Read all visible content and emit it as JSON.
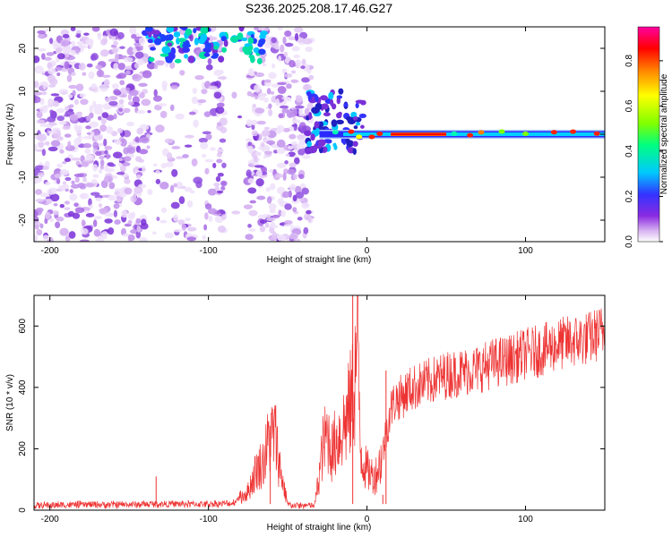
{
  "title": "S236.2025.208.17.46.G27",
  "chart_data": [
    {
      "type": "heatmap",
      "title": "S236.2025.208.17.46.G27",
      "xlabel": "Height of straight line (km)",
      "ylabel": "Frequency (Hz)",
      "xlim": [
        -210,
        150
      ],
      "ylim": [
        -25,
        25
      ],
      "x_ticks": [
        -200,
        -100,
        0,
        100
      ],
      "y_ticks": [
        20,
        10,
        0,
        -10,
        -20
      ],
      "colorbar": {
        "label": "Normalized spectral amplitude",
        "range": [
          0.0,
          0.95
        ],
        "ticks": [
          "0.0",
          "0.2",
          "0.4",
          "0.6",
          "0.8"
        ],
        "colormap": [
          "#ffffff",
          "#d8b4f0",
          "#8a2be2",
          "#3333ff",
          "#00c8ff",
          "#00ff80",
          "#80ff00",
          "#ffff00",
          "#ff8000",
          "#ff0000",
          "#ff00a0"
        ]
      },
      "features": {
        "noise_region_km": [
          -210,
          -35
        ],
        "gap_region_km": [
          -90,
          -75
        ],
        "carrier_start_km": -30,
        "carrier_frequency_hz": 0,
        "peak_carrier_region_km": [
          15,
          50
        ]
      }
    },
    {
      "type": "line",
      "xlabel": "Height of straight line (km)",
      "ylabel": "SNR (10 * v/v)",
      "xlim": [
        -210,
        150
      ],
      "ylim": [
        0,
        700
      ],
      "x_ticks": [
        -200,
        -100,
        0,
        100
      ],
      "y_ticks": [
        0,
        200,
        400,
        600
      ],
      "color": "#ee3333",
      "x": [
        -210,
        -180,
        -150,
        -130,
        -120,
        -100,
        -85,
        -75,
        -70,
        -65,
        -62,
        -58,
        -55,
        -50,
        -45,
        -40,
        -36,
        -33,
        -30,
        -28,
        -25,
        -22,
        -20,
        -17,
        -14,
        -12,
        -10,
        -8,
        -6,
        -4,
        -2,
        0,
        2,
        5,
        8,
        10,
        12,
        15,
        18,
        22,
        26,
        30,
        40,
        50,
        60,
        70,
        80,
        90,
        100,
        110,
        120,
        130,
        140,
        150
      ],
      "y": [
        15,
        18,
        18,
        20,
        20,
        20,
        22,
        60,
        130,
        160,
        230,
        250,
        140,
        18,
        15,
        15,
        15,
        15,
        120,
        200,
        250,
        190,
        220,
        250,
        280,
        310,
        350,
        400,
        560,
        200,
        150,
        130,
        120,
        110,
        150,
        190,
        250,
        330,
        360,
        370,
        390,
        400,
        420,
        440,
        450,
        460,
        480,
        490,
        510,
        520,
        540,
        550,
        560,
        585
      ],
      "spikes": [
        {
          "x": -133,
          "y": 110
        },
        {
          "x": -61,
          "y": 275
        },
        {
          "x": -9,
          "y": 700
        },
        {
          "x": 10,
          "y": 50
        },
        {
          "x": 12,
          "y": 455
        }
      ]
    }
  ]
}
